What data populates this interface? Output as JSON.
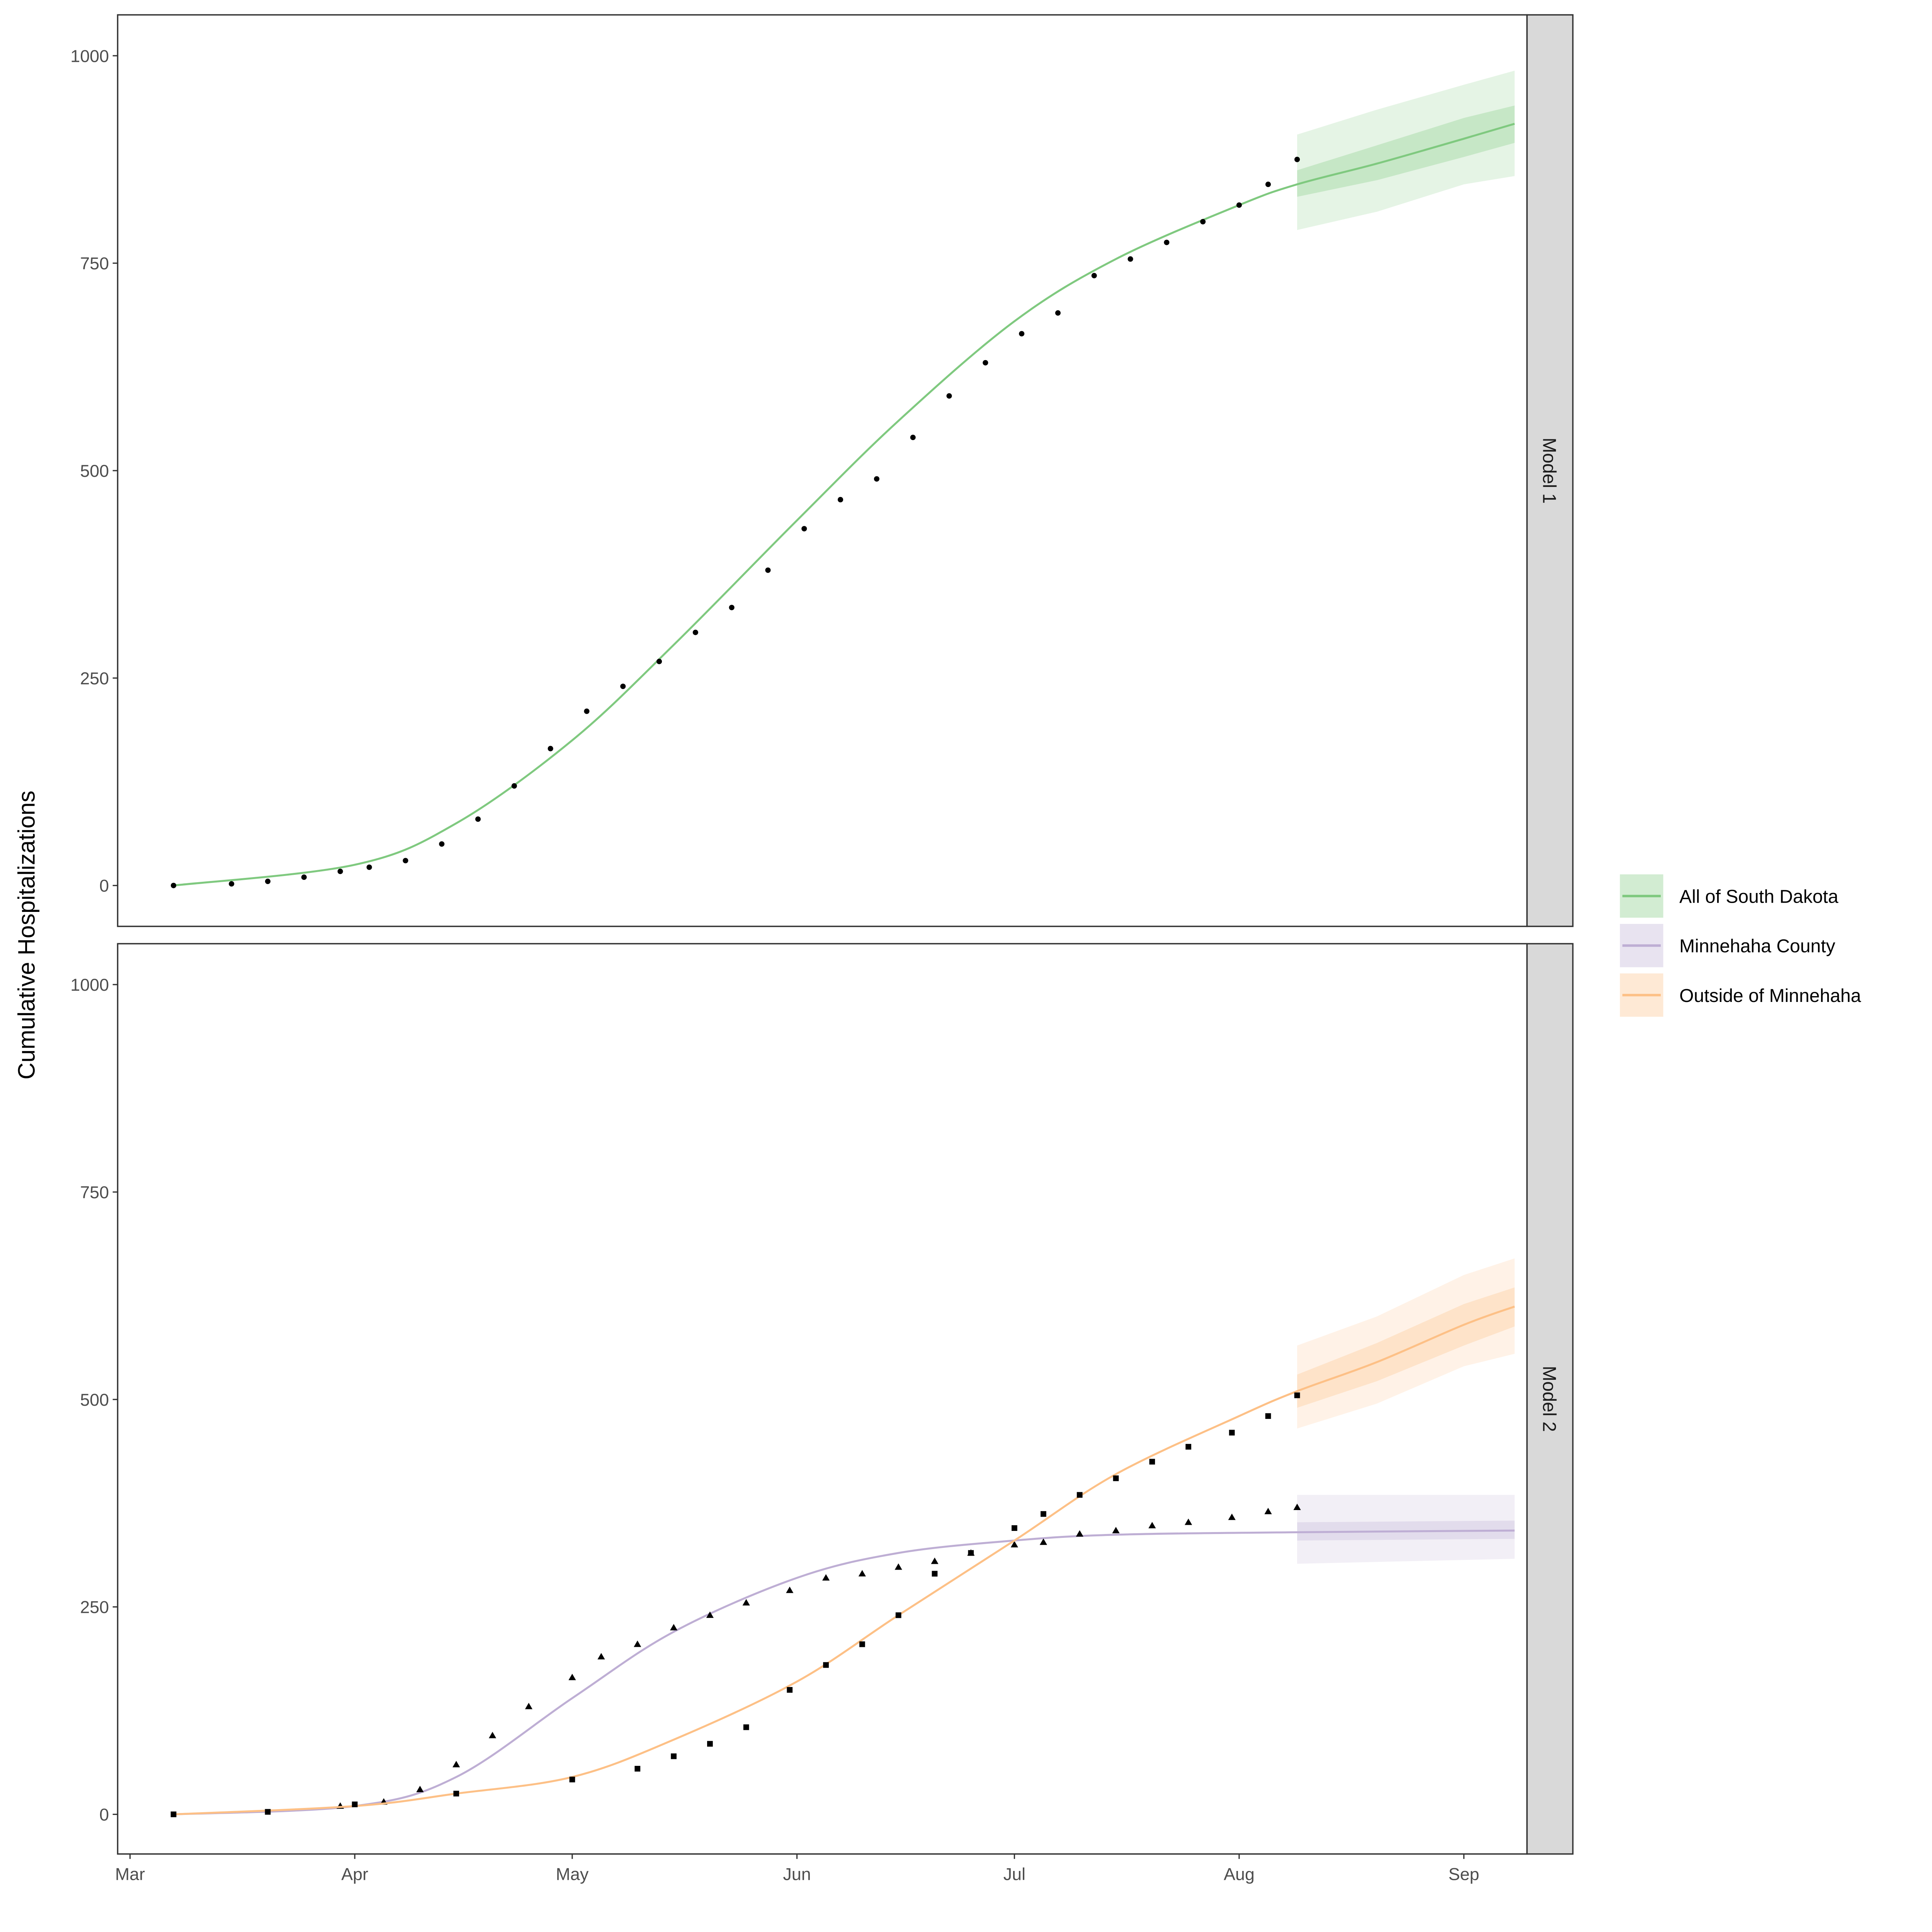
{
  "chart_data": [
    {
      "type": "line",
      "panel_label": "Model 1",
      "ylabel": "Cumulative Hospitalizations",
      "ylim": [
        -50,
        1050
      ],
      "yticks": [
        "0",
        "250",
        "500",
        "750",
        "1000"
      ],
      "xticks": [
        "Mar",
        "Apr",
        "May",
        "Jun",
        "Jul",
        "Aug",
        "Sep"
      ],
      "grid": false,
      "series": [
        {
          "name": "All of South Dakota",
          "color": "#7fc97f",
          "marker": "circle",
          "observed": [
            [
              "Mar 7",
              0
            ],
            [
              "Mar 15",
              2
            ],
            [
              "Mar 20",
              5
            ],
            [
              "Mar 25",
              10
            ],
            [
              "Mar 30",
              17
            ],
            [
              "Apr 3",
              22
            ],
            [
              "Apr 8",
              30
            ],
            [
              "Apr 13",
              50
            ],
            [
              "Apr 18",
              80
            ],
            [
              "Apr 23",
              120
            ],
            [
              "Apr 28",
              165
            ],
            [
              "May 3",
              210
            ],
            [
              "May 8",
              240
            ],
            [
              "May 13",
              270
            ],
            [
              "May 18",
              305
            ],
            [
              "May 23",
              335
            ],
            [
              "May 28",
              380
            ],
            [
              "Jun 2",
              430
            ],
            [
              "Jun 7",
              465
            ],
            [
              "Jun 12",
              490
            ],
            [
              "Jun 17",
              540
            ],
            [
              "Jun 22",
              590
            ],
            [
              "Jun 27",
              630
            ],
            [
              "Jul 2",
              665
            ],
            [
              "Jul 7",
              690
            ],
            [
              "Jul 12",
              735
            ],
            [
              "Jul 17",
              755
            ],
            [
              "Jul 22",
              775
            ],
            [
              "Jul 27",
              800
            ],
            [
              "Aug 1",
              820
            ],
            [
              "Aug 5",
              845
            ],
            [
              "Aug 9",
              875
            ]
          ],
          "fit": [
            [
              "Mar 7",
              0
            ],
            [
              "Apr 1",
              25
            ],
            [
              "Apr 15",
              75
            ],
            [
              "May 1",
              175
            ],
            [
              "May 15",
              290
            ],
            [
              "Jun 1",
              440
            ],
            [
              "Jun 15",
              560
            ],
            [
              "Jul 1",
              680
            ],
            [
              "Jul 15",
              755
            ],
            [
              "Aug 1",
              820
            ],
            [
              "Aug 9",
              845
            ],
            [
              "Aug 20",
              870
            ],
            [
              "Sep 1",
              900
            ],
            [
              "Sep 8",
              918
            ]
          ],
          "band_inner": [
            [
              "Aug 9",
              830,
              862
            ],
            [
              "Aug 20",
              850,
              892
            ],
            [
              "Sep 1",
              878,
              925
            ],
            [
              "Sep 8",
              895,
              940
            ]
          ],
          "band_outer": [
            [
              "Aug 9",
              790,
              905
            ],
            [
              "Aug 20",
              812,
              935
            ],
            [
              "Sep 1",
              845,
              965
            ],
            [
              "Sep 8",
              855,
              982
            ]
          ]
        }
      ]
    },
    {
      "type": "line",
      "panel_label": "Model 2",
      "ylim": [
        -50,
        1050
      ],
      "yticks": [
        "0",
        "250",
        "500",
        "750",
        "1000"
      ],
      "xticks": [
        "Mar",
        "Apr",
        "May",
        "Jun",
        "Jul",
        "Aug",
        "Sep"
      ],
      "grid": false,
      "series": [
        {
          "name": "Minnehaha County",
          "color": "#beaed4",
          "marker": "triangle",
          "observed": [
            [
              "Mar 30",
              10
            ],
            [
              "Apr 5",
              15
            ],
            [
              "Apr 10",
              30
            ],
            [
              "Apr 15",
              60
            ],
            [
              "Apr 20",
              95
            ],
            [
              "Apr 25",
              130
            ],
            [
              "May 1",
              165
            ],
            [
              "May 5",
              190
            ],
            [
              "May 10",
              205
            ],
            [
              "May 15",
              225
            ],
            [
              "May 20",
              240
            ],
            [
              "May 25",
              255
            ],
            [
              "May 31",
              270
            ],
            [
              "Jun 5",
              285
            ],
            [
              "Jun 10",
              290
            ],
            [
              "Jun 15",
              298
            ],
            [
              "Jun 20",
              305
            ],
            [
              "Jun 25",
              315
            ],
            [
              "Jul 1",
              325
            ],
            [
              "Jul 5",
              328
            ],
            [
              "Jul 10",
              338
            ],
            [
              "Jul 15",
              342
            ],
            [
              "Jul 20",
              348
            ],
            [
              "Jul 25",
              352
            ],
            [
              "Jul 31",
              358
            ],
            [
              "Aug 5",
              365
            ],
            [
              "Aug 9",
              370
            ]
          ],
          "fit": [
            [
              "Mar 7",
              0
            ],
            [
              "Apr 1",
              10
            ],
            [
              "Apr 15",
              45
            ],
            [
              "May 1",
              140
            ],
            [
              "May 15",
              220
            ],
            [
              "Jun 1",
              285
            ],
            [
              "Jun 15",
              315
            ],
            [
              "Jul 1",
              330
            ],
            [
              "Jul 15",
              337
            ],
            [
              "Aug 9",
              340
            ],
            [
              "Sep 8",
              342
            ]
          ],
          "band_inner": [
            [
              "Aug 9",
              330,
              352
            ],
            [
              "Sep 8",
              332,
              354
            ]
          ],
          "band_outer": [
            [
              "Aug 9",
              302,
              385
            ],
            [
              "Sep 8",
              308,
              385
            ]
          ]
        },
        {
          "name": "Outside of Minnehaha",
          "color": "#fdc086",
          "marker": "square",
          "observed": [
            [
              "Mar 7",
              0
            ],
            [
              "Mar 20",
              3
            ],
            [
              "Apr 1",
              12
            ],
            [
              "Apr 15",
              25
            ],
            [
              "May 1",
              42
            ],
            [
              "May 10",
              55
            ],
            [
              "May 15",
              70
            ],
            [
              "May 20",
              85
            ],
            [
              "May 25",
              105
            ],
            [
              "May 31",
              150
            ],
            [
              "Jun 5",
              180
            ],
            [
              "Jun 10",
              205
            ],
            [
              "Jun 15",
              240
            ],
            [
              "Jun 20",
              290
            ],
            [
              "Jun 25",
              315
            ],
            [
              "Jul 1",
              345
            ],
            [
              "Jul 5",
              362
            ],
            [
              "Jul 10",
              385
            ],
            [
              "Jul 15",
              405
            ],
            [
              "Jul 20",
              425
            ],
            [
              "Jul 25",
              443
            ],
            [
              "Jul 31",
              460
            ],
            [
              "Aug 5",
              480
            ],
            [
              "Aug 9",
              505
            ]
          ],
          "fit": [
            [
              "Mar 7",
              0
            ],
            [
              "Apr 1",
              10
            ],
            [
              "Apr 15",
              25
            ],
            [
              "May 1",
              45
            ],
            [
              "May 15",
              90
            ],
            [
              "Jun 1",
              160
            ],
            [
              "Jun 15",
              240
            ],
            [
              "Jul 1",
              330
            ],
            [
              "Jul 15",
              410
            ],
            [
              "Aug 1",
              480
            ],
            [
              "Aug 9",
              510
            ],
            [
              "Aug 20",
              545
            ],
            [
              "Sep 1",
              590
            ],
            [
              "Sep 8",
              612
            ]
          ],
          "band_inner": [
            [
              "Aug 9",
              490,
              530
            ],
            [
              "Aug 20",
              522,
              568
            ],
            [
              "Sep 1",
              565,
              615
            ],
            [
              "Sep 8",
              588,
              635
            ]
          ],
          "band_outer": [
            [
              "Aug 9",
              465,
              565
            ],
            [
              "Aug 20",
              495,
              600
            ],
            [
              "Sep 1",
              540,
              650
            ],
            [
              "Sep 8",
              555,
              670
            ]
          ]
        }
      ]
    }
  ],
  "legend": {
    "position": "right",
    "items": [
      {
        "label": "All of South Dakota",
        "color": "#7fc97f"
      },
      {
        "label": "Minnehaha County",
        "color": "#beaed4"
      },
      {
        "label": "Outside of Minnehaha",
        "color": "#fdc086"
      }
    ]
  }
}
